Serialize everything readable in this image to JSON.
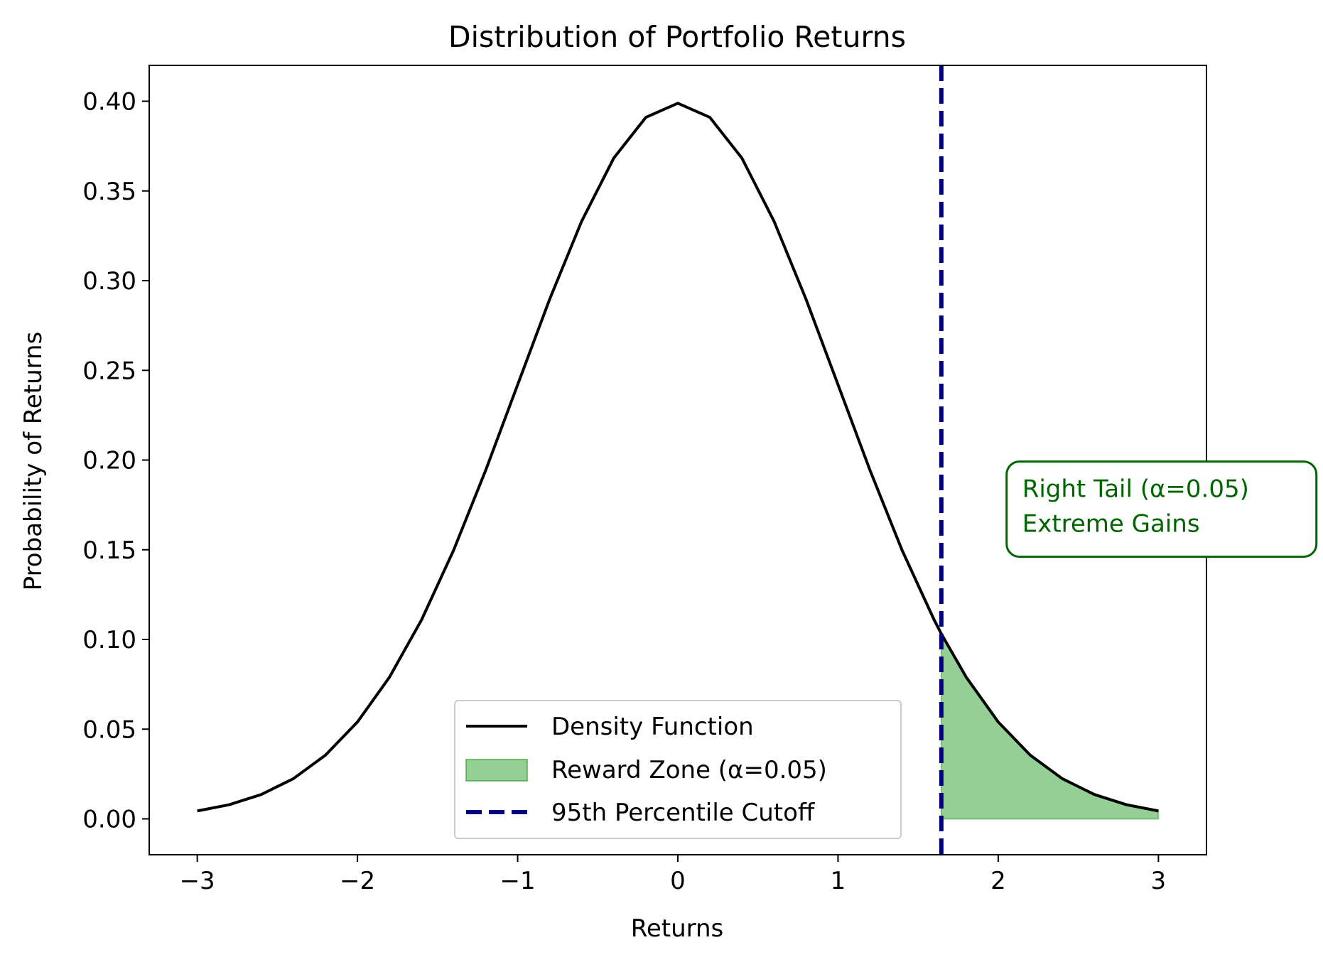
{
  "chart_data": {
    "type": "line",
    "title": "Distribution of Portfolio Returns",
    "xlabel": "Returns",
    "ylabel": "Probability of Returns",
    "xlim": [
      -3.3,
      3.3
    ],
    "ylim": [
      -0.02,
      0.42
    ],
    "x_ticks": [
      -3,
      -2,
      -1,
      0,
      1,
      2,
      3
    ],
    "x_tick_labels": [
      "−3",
      "−2",
      "−1",
      "0",
      "1",
      "2",
      "3"
    ],
    "y_ticks": [
      0.0,
      0.05,
      0.1,
      0.15,
      0.2,
      0.25,
      0.3,
      0.35,
      0.4
    ],
    "y_tick_labels": [
      "0.00",
      "0.05",
      "0.10",
      "0.15",
      "0.20",
      "0.25",
      "0.30",
      "0.35",
      "0.40"
    ],
    "grid": false,
    "legend_position": "lower-center",
    "series": [
      {
        "name": "Density Function",
        "kind": "line",
        "color": "#000000",
        "x": [
          -3.0,
          -2.8,
          -2.6,
          -2.4,
          -2.2,
          -2.0,
          -1.8,
          -1.6,
          -1.4,
          -1.2,
          -1.0,
          -0.8,
          -0.6,
          -0.4,
          -0.2,
          0.0,
          0.2,
          0.4,
          0.6,
          0.8,
          1.0,
          1.2,
          1.4,
          1.6,
          1.645,
          1.8,
          2.0,
          2.2,
          2.4,
          2.6,
          2.8,
          3.0
        ],
        "y": [
          0.0044,
          0.0079,
          0.0136,
          0.0224,
          0.0355,
          0.054,
          0.079,
          0.1109,
          0.1497,
          0.1942,
          0.242,
          0.2897,
          0.3332,
          0.3683,
          0.391,
          0.3989,
          0.391,
          0.3683,
          0.3332,
          0.2897,
          0.242,
          0.1942,
          0.1497,
          0.1109,
          0.1031,
          0.079,
          0.054,
          0.0355,
          0.0224,
          0.0136,
          0.0079,
          0.0044
        ]
      },
      {
        "name": "Reward Zone (α=0.05)",
        "kind": "fill",
        "color": "#2ca02c",
        "x": [
          1.645,
          1.8,
          2.0,
          2.2,
          2.4,
          2.6,
          2.8,
          3.0
        ],
        "y": [
          0.1031,
          0.079,
          0.054,
          0.0355,
          0.0224,
          0.0136,
          0.0079,
          0.0044
        ]
      },
      {
        "name": "95th Percentile Cutoff",
        "kind": "vline",
        "color": "#000080",
        "x": 1.645
      }
    ],
    "annotation": {
      "lines": [
        "Right Tail (α=0.05)",
        "Extreme Gains"
      ],
      "color": "#006400",
      "x": 2.15,
      "y": 0.175
    }
  }
}
